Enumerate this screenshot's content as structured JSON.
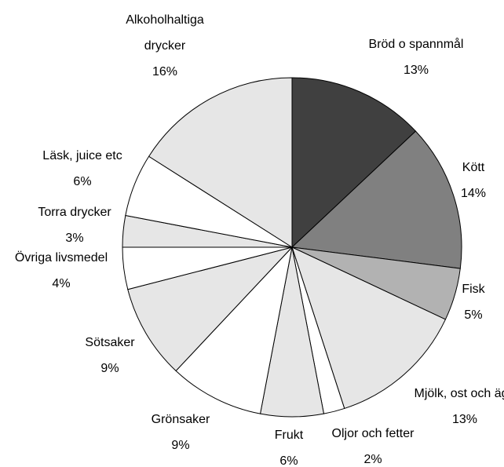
{
  "chart_data": {
    "type": "pie",
    "categories": [
      "Bröd o spannmål",
      "Kött",
      "Fisk",
      "Mjölk, ost och ägg",
      "Oljor och fetter",
      "Frukt",
      "Grönsaker",
      "Sötsaker",
      "Övriga livsmedel",
      "Torra drycker",
      "Läsk, juice etc",
      "Alkoholhaltiga drycker"
    ],
    "values": [
      13,
      14,
      5,
      13,
      2,
      6,
      9,
      9,
      4,
      3,
      6,
      16
    ],
    "value_labels": [
      "13%",
      "14%",
      "5%",
      "13%",
      "2%",
      "6%",
      "9%",
      "9%",
      "4%",
      "3%",
      "6%",
      "16%"
    ],
    "colors": [
      "#404040",
      "#808080",
      "#b2b2b2",
      "#e6e6e6",
      "#ffffff",
      "#e6e6e6",
      "#ffffff",
      "#e6e6e6",
      "#ffffff",
      "#e6e6e6",
      "#ffffff",
      "#e6e6e6"
    ]
  }
}
